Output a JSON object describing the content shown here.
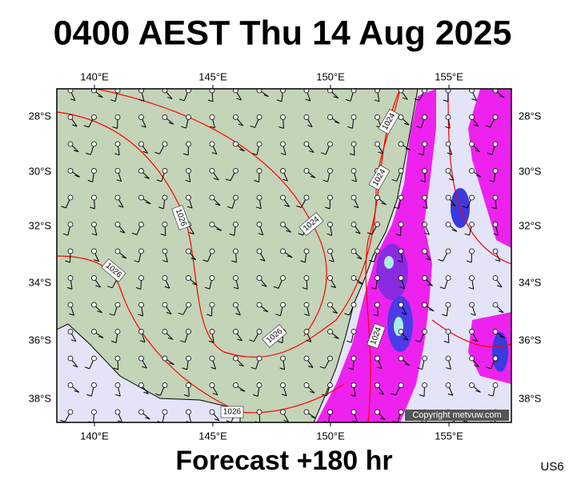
{
  "header": {
    "title": "0400 AEST Thu 14 Aug 2025"
  },
  "map": {
    "longitude_labels": [
      "140°E",
      "145°E",
      "150°E",
      "155°E"
    ],
    "latitude_labels": [
      "28°S",
      "30°S",
      "32°S",
      "34°S",
      "36°S",
      "38°S"
    ],
    "isobar_labels": [
      "1024",
      "1024",
      "1026",
      "1024",
      "1026",
      "1026",
      "1024",
      "1026"
    ],
    "copyright": "Copyright metvuw.com"
  },
  "footer": {
    "forecast": "Forecast +180 hr",
    "region": "US6"
  }
}
